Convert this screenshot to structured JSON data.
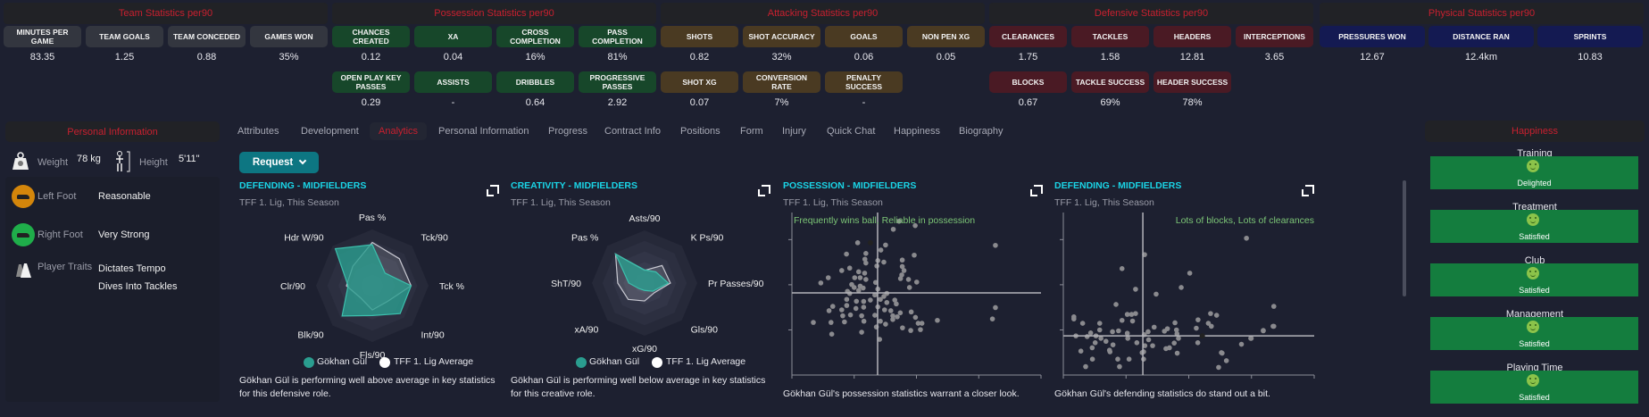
{
  "stat_groups": [
    {
      "title": "Team Statistics per90",
      "color": "#33363f",
      "rows": [
        [
          {
            "label": "Minutes per game",
            "value": "83.35"
          },
          {
            "label": "Team goals",
            "value": "1.25"
          },
          {
            "label": "Team conceded",
            "value": "0.88"
          },
          {
            "label": "Games won",
            "value": "35%"
          }
        ]
      ]
    },
    {
      "title": "Possession Statistics per90",
      "color": "#17472a",
      "rows": [
        [
          {
            "label": "Chances created",
            "value": "0.12"
          },
          {
            "label": "XA",
            "value": "0.04"
          },
          {
            "label": "Cross completion",
            "value": "16%"
          },
          {
            "label": "Pass completion",
            "value": "81%"
          }
        ],
        [
          {
            "label": "Open play key passes",
            "value": "0.29"
          },
          {
            "label": "Assists",
            "value": "-"
          },
          {
            "label": "Dribbles",
            "value": "0.64"
          },
          {
            "label": "Progressive passes",
            "value": "2.92"
          }
        ]
      ]
    },
    {
      "title": "Attacking Statistics per90",
      "color": "#4a3a22",
      "rows": [
        [
          {
            "label": "Shots",
            "value": "0.82"
          },
          {
            "label": "Shot accuracy",
            "value": "32%"
          },
          {
            "label": "Goals",
            "value": "0.06"
          },
          {
            "label": "Non pen xG",
            "value": "0.05"
          }
        ],
        [
          {
            "label": "Shot xG",
            "value": "0.07"
          },
          {
            "label": "Conversion rate",
            "value": "7%"
          },
          {
            "label": "Penalty success",
            "value": "-"
          }
        ]
      ]
    },
    {
      "title": "Defensive Statistics per90",
      "color": "#4a1a24",
      "rows": [
        [
          {
            "label": "Clearances",
            "value": "1.75"
          },
          {
            "label": "Tackles",
            "value": "1.58"
          },
          {
            "label": "Headers",
            "value": "12.81"
          },
          {
            "label": "Interceptions",
            "value": "3.65"
          }
        ],
        [
          {
            "label": "Blocks",
            "value": "0.67"
          },
          {
            "label": "Tackle success",
            "value": "69%"
          },
          {
            "label": "Header success",
            "value": "78%"
          }
        ]
      ]
    },
    {
      "title": "Physical Statistics per90",
      "color": "#141a52",
      "rows": [
        [
          {
            "label": "Pressures won",
            "value": "12.67"
          },
          {
            "label": "Distance ran",
            "value": "12.4km"
          },
          {
            "label": "Sprints",
            "value": "10.83"
          }
        ]
      ]
    }
  ],
  "personal": {
    "title": "Personal Information",
    "weight_label": "Weight",
    "weight": "78 kg",
    "height_label": "Height",
    "height": "5'11\"",
    "left_foot_label": "Left Foot",
    "left_foot": "Reasonable",
    "left_foot_color": "#d4860b",
    "right_foot_label": "Right Foot",
    "right_foot": "Very Strong",
    "right_foot_color": "#1fae4a",
    "traits_label": "Player Traits",
    "traits": [
      "Dictates Tempo",
      "Dives Into Tackles"
    ]
  },
  "tabs": [
    "Attributes",
    "Development",
    "Analytics",
    "Personal Information",
    "Progress",
    "Contract Info",
    "Positions",
    "Form",
    "Injury",
    "Quick Chat",
    "Happiness",
    "Biography"
  ],
  "active_tab": "Analytics",
  "request_label": "Request",
  "player_name": "Gökhan Gül",
  "average_name": "TFF 1. Lig Average",
  "colors": {
    "accent": "#c8202f",
    "player": "#2a9d8f",
    "average": "#ffffff",
    "title": "#1ad4e6",
    "scatter_note": "#7cc576"
  },
  "chart_data": [
    {
      "type": "radar",
      "title": "DEFENDING - MIDFIELDERS",
      "subtitle": "TFF 1. Lig, This Season",
      "axes": [
        "Pas %",
        "Tck/90",
        "Tck %",
        "Int/90",
        "Fls/90",
        "Blk/90",
        "Clr/90",
        "Hdr W/90"
      ],
      "series": [
        {
          "name": "Gökhan Gül",
          "values": [
            0.73,
            0.32,
            0.69,
            0.7,
            0.53,
            0.76,
            0.43,
            0.93
          ]
        },
        {
          "name": "TFF 1. Lig Average",
          "values": [
            0.77,
            0.68,
            0.69,
            0.39,
            0.43,
            0.3,
            0.46,
            0.49
          ]
        }
      ],
      "range": [
        0,
        1
      ],
      "caption": "Gökhan Gül is performing well above average in key statistics for this defensive role."
    },
    {
      "type": "radar",
      "title": "CREATIVITY - MIDFIELDERS",
      "subtitle": "TFF 1. Lig, This Season",
      "axes": [
        "Asts/90",
        "K Ps/90",
        "Pr Passes/90",
        "Gls/90",
        "xG/90",
        "xA/90",
        "ShT/90",
        "Pas %"
      ],
      "series": [
        {
          "name": "Gökhan Gül",
          "values": [
            0.25,
            0.3,
            0.45,
            0.22,
            0.14,
            0.15,
            0.3,
            0.78
          ]
        },
        {
          "name": "TFF 1. Lig Average",
          "values": [
            0.24,
            0.47,
            0.49,
            0.26,
            0.34,
            0.44,
            0.51,
            0.78
          ]
        }
      ],
      "range": [
        0,
        1
      ],
      "caption": "Gökhan Gül is performing well below average in key statistics for this creative role."
    },
    {
      "type": "scatter",
      "title": "POSSESSION - MIDFIELDERS",
      "subtitle": "TFF 1. Lig, This Season",
      "note": "Frequently wins ball, Reliable in possession",
      "xlim": [
        0,
        100
      ],
      "ylim": [
        7,
        100
      ],
      "mean": [
        34.4,
        54
      ],
      "player": [
        31.5,
        82.7
      ],
      "points": [
        [
          43,
          95
        ],
        [
          49.5,
          92.5
        ],
        [
          40.7,
          90.4
        ],
        [
          26.4,
          82.7
        ],
        [
          37.6,
          81.4
        ],
        [
          81.7,
          81.2
        ],
        [
          35.7,
          78.5
        ],
        [
          29.7,
          76.6
        ],
        [
          21.9,
          76.2
        ],
        [
          49.1,
          75.6
        ],
        [
          29.3,
          73.3
        ],
        [
          34.5,
          72.5
        ],
        [
          36.9,
          71.6
        ],
        [
          44.3,
          72.8
        ],
        [
          29.7,
          71.1
        ],
        [
          34.1,
          69.4
        ],
        [
          23.2,
          68.2
        ],
        [
          20,
          66.8
        ],
        [
          44.3,
          69.1
        ],
        [
          45,
          66.8
        ],
        [
          26.8,
          66.1
        ],
        [
          29.2,
          65.3
        ],
        [
          44.1,
          64.3
        ],
        [
          14.6,
          62.7
        ],
        [
          25.2,
          62.7
        ],
        [
          27.4,
          62.7
        ],
        [
          29.7,
          61.7
        ],
        [
          43.6,
          62.2
        ],
        [
          46.8,
          61.7
        ],
        [
          11.6,
          59.7
        ],
        [
          50.1,
          60.2
        ],
        [
          24,
          58.8
        ],
        [
          33.6,
          60
        ],
        [
          27.4,
          57.9
        ],
        [
          25,
          57.1
        ],
        [
          28.6,
          56.8
        ],
        [
          47.2,
          57.1
        ],
        [
          34.5,
          56.2
        ],
        [
          22.3,
          54.9
        ],
        [
          23.2,
          53.7
        ],
        [
          26.8,
          55.4
        ],
        [
          38.1,
          53.7
        ],
        [
          33.3,
          52.8
        ],
        [
          36.9,
          52
        ],
        [
          22,
          50.3
        ],
        [
          25.9,
          49.2
        ],
        [
          28.8,
          49.1
        ],
        [
          31.5,
          49.9
        ],
        [
          35.5,
          50.3
        ],
        [
          41.3,
          49.9
        ],
        [
          16.4,
          46.3
        ],
        [
          22,
          46.8
        ],
        [
          38.1,
          48.5
        ],
        [
          41.9,
          47.7
        ],
        [
          14.9,
          43.8
        ],
        [
          20,
          44.3
        ],
        [
          25.7,
          45.1
        ],
        [
          28.8,
          45.8
        ],
        [
          34.5,
          46
        ],
        [
          37.2,
          44.3
        ],
        [
          39.7,
          43.8
        ],
        [
          43.5,
          42.6
        ],
        [
          47.9,
          43.1
        ],
        [
          81.7,
          45.6
        ],
        [
          20.4,
          40.9
        ],
        [
          23.5,
          41.4
        ],
        [
          28,
          40.9
        ],
        [
          33.3,
          41.2
        ],
        [
          40.5,
          40.9
        ],
        [
          42.3,
          40.3
        ],
        [
          49.6,
          40
        ],
        [
          80.5,
          39.1
        ],
        [
          8.6,
          37.1
        ],
        [
          15.7,
          37.1
        ],
        [
          21.1,
          37.4
        ],
        [
          28.9,
          37.8
        ],
        [
          35.5,
          37.8
        ],
        [
          40.5,
          38.8
        ],
        [
          58.4,
          38.3
        ],
        [
          37.6,
          36.1
        ],
        [
          50.7,
          36.6
        ],
        [
          52.2,
          36.6
        ],
        [
          16,
          30.4
        ],
        [
          28,
          31.5
        ],
        [
          33.9,
          34.5
        ],
        [
          44.4,
          34
        ],
        [
          47.7,
          32.5
        ],
        [
          51.6,
          33
        ],
        [
          35.2,
          27.4
        ]
      ],
      "caption": "Gökhan Gül's possession statistics warrant a closer look."
    },
    {
      "type": "scatter",
      "title": "DEFENDING - MIDFIELDERS",
      "subtitle": "TFF 1. Lig, This Season",
      "note": "Lots of blocks, Lots of clearances",
      "xlim": [
        0,
        100
      ],
      "ylim": [
        7,
        100
      ],
      "mean": [
        31.7,
        29.4
      ],
      "player": [
        55.4,
        29.4
      ],
      "points": [
        [
          73,
          85.3
        ],
        [
          32.4,
          75.9
        ],
        [
          23.4,
          67.9
        ],
        [
          50.4,
          65.3
        ],
        [
          28.8,
          56.1
        ],
        [
          47,
          57.1
        ],
        [
          37,
          53.3
        ],
        [
          21,
          47.4
        ],
        [
          83.9,
          46.3
        ],
        [
          4.2,
          40.3
        ],
        [
          4.2,
          39.1
        ],
        [
          7.7,
          36.6
        ],
        [
          25.5,
          41.7
        ],
        [
          27.2,
          41.7
        ],
        [
          28.8,
          42.2
        ],
        [
          23.4,
          38.3
        ],
        [
          27.6,
          37.9
        ],
        [
          14.5,
          36.6
        ],
        [
          58.7,
          42.2
        ],
        [
          61.1,
          41.2
        ],
        [
          53.7,
          38.6
        ],
        [
          57.8,
          36.6
        ],
        [
          59,
          34.9
        ],
        [
          83.9,
          34.9
        ],
        [
          44.5,
          36.9
        ],
        [
          79.7,
          32.5
        ],
        [
          53,
          33.8
        ],
        [
          36.2,
          34.4
        ],
        [
          41.5,
          33.5
        ],
        [
          40.3,
          32.1
        ],
        [
          45.1,
          32.8
        ],
        [
          22,
          32.3
        ],
        [
          19.6,
          31.8
        ],
        [
          14.5,
          32.8
        ],
        [
          10.9,
          31.1
        ],
        [
          25.5,
          30.9
        ],
        [
          5,
          29.4
        ],
        [
          9.5,
          29
        ],
        [
          33.8,
          31.8
        ],
        [
          32.3,
          30.1
        ],
        [
          45.3,
          30.6
        ],
        [
          45.9,
          28
        ],
        [
          74.7,
          28
        ],
        [
          53.6,
          25.5
        ],
        [
          71,
          24.6
        ],
        [
          13,
          29.4
        ],
        [
          15,
          28
        ],
        [
          17,
          26.3
        ],
        [
          19.8,
          24.3
        ],
        [
          12.7,
          25.5
        ],
        [
          11.5,
          22.6
        ],
        [
          25.7,
          28
        ],
        [
          29.3,
          25.5
        ],
        [
          34,
          27.2
        ],
        [
          35.6,
          23.8
        ],
        [
          42.3,
          22.6
        ],
        [
          44.2,
          25.3
        ],
        [
          32.5,
          23.8
        ],
        [
          7,
          20.7
        ],
        [
          18.6,
          20.3
        ],
        [
          31.4,
          19.8
        ],
        [
          63,
          19.8
        ],
        [
          8.9,
          11.8
        ],
        [
          11.6,
          16.1
        ],
        [
          22.4,
          11.8
        ],
        [
          21.7,
          16.1
        ],
        [
          26.2,
          16.1
        ],
        [
          18.4,
          21.2
        ],
        [
          32,
          16.1
        ],
        [
          32,
          20.3
        ],
        [
          40.9,
          22.1
        ],
        [
          45.4,
          19.5
        ],
        [
          63.3,
          19.5
        ],
        [
          65,
          15.2
        ],
        [
          61.9,
          11.4
        ],
        [
          74.9,
          28
        ],
        [
          79.7,
          32.3
        ],
        [
          83.6,
          34.9
        ]
      ],
      "caption": "Gökhan Gül's defending statistics do stand out a bit."
    }
  ],
  "happiness": {
    "title": "Happiness",
    "items": [
      {
        "label": "Training",
        "status": "Delighted"
      },
      {
        "label": "Treatment",
        "status": "Satisfied"
      },
      {
        "label": "Club",
        "status": "Satisfied"
      },
      {
        "label": "Management",
        "status": "Satisfied"
      },
      {
        "label": "Playing Time",
        "status": "Satisfied"
      }
    ]
  }
}
